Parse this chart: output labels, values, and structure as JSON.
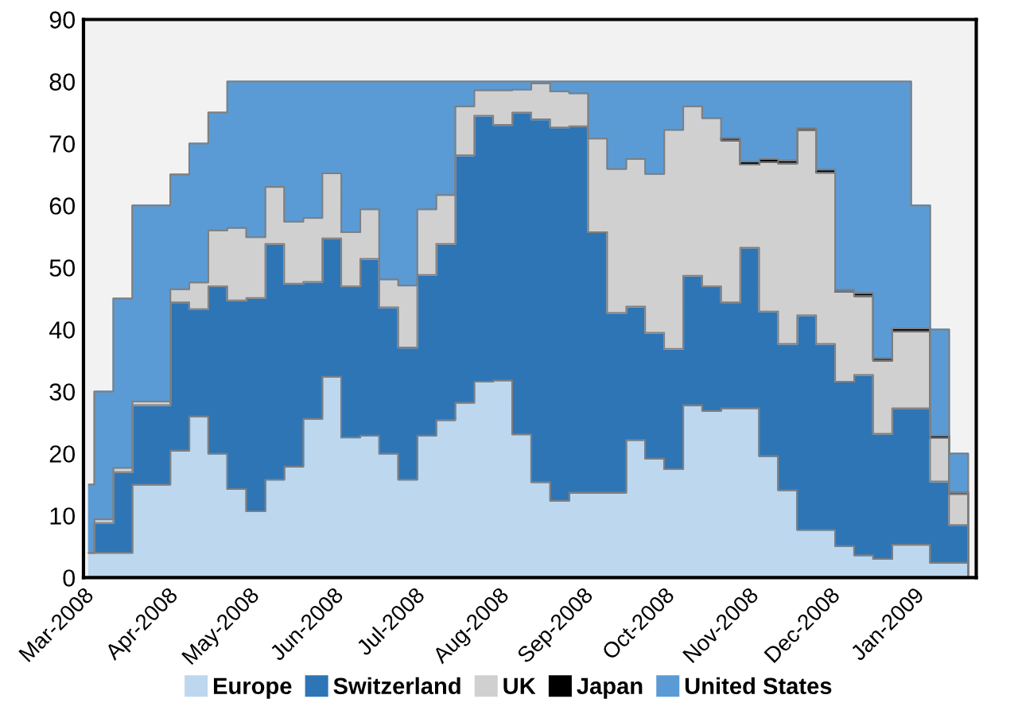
{
  "chart_data": {
    "type": "area",
    "stacked": true,
    "legend": "bottom",
    "grid": false,
    "x": [
      "2008-03-03",
      "2008-03-05",
      "2008-03-12",
      "2008-03-19",
      "2008-03-26",
      "2008-04-02",
      "2008-04-09",
      "2008-04-16",
      "2008-04-23",
      "2008-04-30",
      "2008-05-07",
      "2008-05-14",
      "2008-05-21",
      "2008-05-28",
      "2008-06-04",
      "2008-06-11",
      "2008-06-18",
      "2008-06-25",
      "2008-07-02",
      "2008-07-09",
      "2008-07-16",
      "2008-07-23",
      "2008-07-30",
      "2008-08-06",
      "2008-08-13",
      "2008-08-20",
      "2008-08-27",
      "2008-09-03",
      "2008-09-10",
      "2008-09-17",
      "2008-09-24",
      "2008-10-01",
      "2008-10-08",
      "2008-10-15",
      "2008-10-22",
      "2008-10-29",
      "2008-11-05",
      "2008-11-12",
      "2008-11-19",
      "2008-11-26",
      "2008-12-03",
      "2008-12-10",
      "2008-12-17",
      "2008-12-24",
      "2008-12-31",
      "2009-01-07",
      "2009-01-14",
      "2009-01-21"
    ],
    "series": [
      {
        "name": "Europe",
        "color": "#bdd7ee",
        "values": [
          4,
          4,
          4,
          15,
          15,
          20.5,
          26,
          20,
          14.3,
          10.7,
          15.8,
          17.9,
          25.6,
          32.4,
          22.6,
          22.9,
          20,
          15.8,
          22.9,
          25.4,
          28.2,
          31.6,
          31.8,
          23.1,
          15.4,
          12.4,
          13.7,
          13.7,
          13.7,
          22.2,
          19.2,
          17.5,
          27.8,
          26.9,
          27.3,
          27.3,
          19.6,
          14.1,
          7.7,
          7.7,
          5.1,
          3.6,
          3.0,
          5.3,
          5.3,
          2.4,
          2.4,
          0
        ]
      },
      {
        "name": "Switzerland",
        "color": "#2e75b6",
        "values": [
          0,
          4.8,
          13,
          12.8,
          12.8,
          23.9,
          17.3,
          27,
          30.4,
          34.4,
          38,
          29.5,
          22.1,
          22.3,
          24.4,
          28.5,
          23.6,
          21.3,
          25.9,
          28.4,
          39.9,
          42.9,
          41.2,
          51.9,
          58.5,
          60.2,
          59.1,
          42,
          29,
          21.5,
          20.3,
          19.4,
          20.9,
          20.1,
          17.1,
          25.9,
          23.3,
          23.6,
          34.6,
          30,
          26.5,
          29.1,
          20.2,
          22,
          22,
          13.1,
          6.1,
          0
        ]
      },
      {
        "name": "UK",
        "color": "#d0d0d0",
        "values": [
          0,
          0.6,
          0.7,
          0.6,
          0.6,
          2.1,
          4.3,
          9,
          11.7,
          9.8,
          9.2,
          10,
          10.3,
          10.5,
          8.7,
          8,
          4.5,
          10,
          10.6,
          7.9,
          7.9,
          4.1,
          5.6,
          3.7,
          5.8,
          5.8,
          5.3,
          15.1,
          23.2,
          23.8,
          25.6,
          35.3,
          27.3,
          27.1,
          26.1,
          13.4,
          24.1,
          29.1,
          29.9,
          27.6,
          14.5,
          12.7,
          11.8,
          12.4,
          12.4,
          7,
          5,
          0
        ]
      },
      {
        "name": "Japan",
        "color": "#000000",
        "values": [
          null,
          null,
          null,
          null,
          null,
          null,
          null,
          null,
          null,
          null,
          null,
          null,
          null,
          null,
          null,
          null,
          null,
          null,
          null,
          null,
          null,
          null,
          null,
          null,
          null,
          null,
          null,
          null,
          null,
          null,
          null,
          null,
          null,
          null,
          0.4,
          0.5,
          0.5,
          0.5,
          0.3,
          0.5,
          0.3,
          0.5,
          0.4,
          0.5,
          0.5,
          0.4,
          0.3,
          0
        ]
      },
      {
        "name": "United States",
        "color": "#5b9bd5",
        "values": [
          11,
          20.6,
          27.3,
          31.6,
          31.6,
          18.5,
          22.4,
          19,
          23.6,
          25.1,
          17,
          22.6,
          22,
          14.8,
          24.3,
          20.6,
          31.9,
          32.9,
          20.6,
          18.3,
          4,
          1.4,
          1.4,
          1.3,
          0.3,
          1.6,
          1.9,
          9.2,
          14.1,
          12.5,
          14.9,
          7.8,
          4,
          5.9,
          9.1,
          12.9,
          12.5,
          12.7,
          7.5,
          14.2,
          33.6,
          34.1,
          44.6,
          39.8,
          19.8,
          17.1,
          6.2,
          0
        ]
      }
    ],
    "xlim": [
      "2008-03-01",
      "2009-01-24"
    ],
    "xticks": [
      {
        "value": "2008-03-01",
        "label": "Mar-2008"
      },
      {
        "value": "2008-04-01",
        "label": "Apr-2008"
      },
      {
        "value": "2008-05-01",
        "label": "May-2008"
      },
      {
        "value": "2008-06-01",
        "label": "Jun-2008"
      },
      {
        "value": "2008-07-01",
        "label": "Jul-2008"
      },
      {
        "value": "2008-08-01",
        "label": "Aug-2008"
      },
      {
        "value": "2008-09-01",
        "label": "Sep-2008"
      },
      {
        "value": "2008-10-01",
        "label": "Oct-2008"
      },
      {
        "value": "2008-11-01",
        "label": "Nov-2008"
      },
      {
        "value": "2008-12-01",
        "label": "Dec-2008"
      },
      {
        "value": "2009-01-01",
        "label": "Jan-2009"
      }
    ],
    "ylim": [
      0,
      90
    ],
    "yticks": [
      0,
      10,
      20,
      30,
      40,
      50,
      60,
      70,
      80,
      90
    ]
  }
}
